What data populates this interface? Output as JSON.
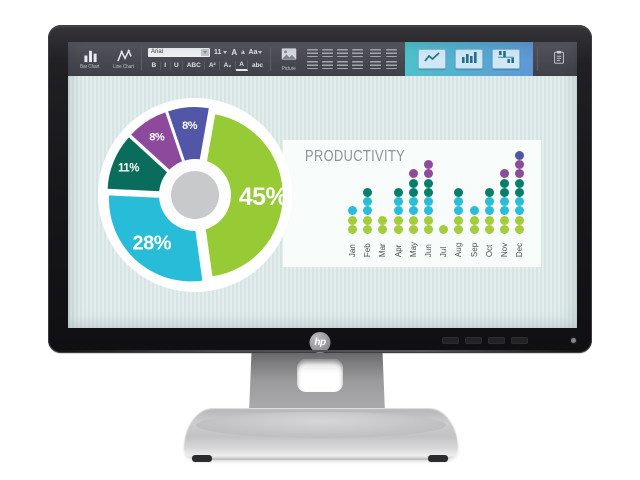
{
  "monitor": {
    "brand": "hp"
  },
  "toolbar": {
    "bar_chart_label": "Bar Chart",
    "line_chart_label": "Line Chart",
    "font_family": "Arial",
    "font_size": "11",
    "grow_font_label": "A",
    "shrink_font_label": "a",
    "change_case_label": "Aa",
    "picture_label": "Picture",
    "format_buttons": [
      {
        "name": "bold-button",
        "label": "B"
      },
      {
        "name": "italic-button",
        "label": "I"
      },
      {
        "name": "underline-button",
        "label": "U"
      },
      {
        "name": "strikethrough-button",
        "label": "ABC"
      },
      {
        "name": "superscript-button",
        "label": "A²"
      },
      {
        "name": "subscript-button",
        "label": "A₂"
      },
      {
        "name": "font-color-button",
        "label": "A"
      },
      {
        "name": "clear-formatting-button",
        "label": "abc"
      }
    ],
    "paragraph_icons": [
      "bullet-list-icon",
      "numbered-list-icon",
      "multilevel-list-icon",
      "line-spacing-icon",
      "align-left-icon",
      "align-center-icon",
      "align-right-icon",
      "align-justify-icon"
    ],
    "indent_icons": [
      "indent-decrease-icon",
      "indent-increase-icon",
      "shading-icon",
      "table-icon"
    ],
    "chart_type_buttons": [
      "line-chart-type-icon",
      "column-chart-type-icon",
      "waterfall-chart-type-icon"
    ],
    "action_icons": [
      "paste-icon",
      "delete-icon",
      "check-icon",
      "mention-icon",
      "history-icon",
      "exit-icon"
    ]
  },
  "slide": {
    "productivity_title": "PRODUCTIVITY"
  },
  "colors": {
    "accent_gradient": [
      "#4ec2ca",
      "#5f97d6"
    ],
    "pie_center": "#c8c9ca",
    "band_background": "#fafdfc"
  },
  "chart_data": [
    {
      "type": "pie",
      "title": "",
      "labels": [
        "45%",
        "28%",
        "11%",
        "8%",
        "8%"
      ],
      "values": [
        45,
        28,
        11,
        8,
        8
      ],
      "colors": [
        "#96cb36",
        "#27bdd9",
        "#0a6c5a",
        "#8d4a9c",
        "#5156a6"
      ],
      "donut": true,
      "start_angle_deg": 10,
      "legend": "none"
    },
    {
      "type": "bar",
      "style": "stacked-dots",
      "title": "PRODUCTIVITY",
      "categories": [
        "Jan",
        "Feb",
        "Mar",
        "Apr",
        "May",
        "Jun",
        "Jul",
        "Aug",
        "Sep",
        "Oct",
        "Nov",
        "Dec"
      ],
      "values": [
        3,
        5,
        2,
        5,
        7,
        8,
        1,
        5,
        3,
        5,
        7,
        9
      ],
      "level_colors": [
        "#a4cd39",
        "#a4cd39",
        "#2abdd8",
        "#2abdd8",
        "#057e6b",
        "#057e6b",
        "#8e4a9d",
        "#8e4a9d",
        "#4c55a6"
      ],
      "ylim": [
        0,
        9
      ],
      "xlabel": "",
      "ylabel": ""
    }
  ],
  "hardware": {
    "control_buttons": [
      "osd-button-1",
      "osd-button-2",
      "osd-button-3",
      "osd-button-4"
    ],
    "power_button": "power-button"
  }
}
